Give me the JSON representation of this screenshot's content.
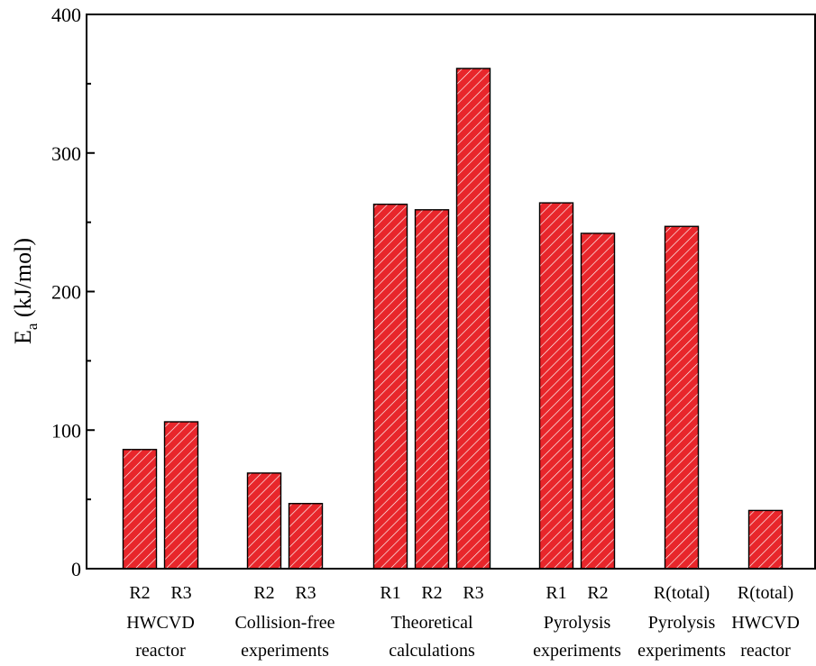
{
  "chart_data": {
    "type": "bar",
    "ylabel": {
      "main": "E",
      "sub": "a",
      "unit": " (kJ/mol)"
    },
    "ylim": [
      0,
      400
    ],
    "yticks": [
      "0",
      "100",
      "200",
      "300",
      "400"
    ],
    "ytick_values": [
      0,
      100,
      200,
      300,
      400
    ],
    "grid": false,
    "bar_color": "#e8262b",
    "hatch_color": "#ffffff",
    "groups": [
      {
        "line1": "HWCVD",
        "line2": "reactor",
        "bars": [
          {
            "label": "R2",
            "value": 86
          },
          {
            "label": "R3",
            "value": 106
          }
        ]
      },
      {
        "line1": "Collision-free",
        "line2": "experiments",
        "bars": [
          {
            "label": "R2",
            "value": 69
          },
          {
            "label": "R3",
            "value": 47
          }
        ]
      },
      {
        "line1": "Theoretical",
        "line2": "calculations",
        "bars": [
          {
            "label": "R1",
            "value": 263
          },
          {
            "label": "R2",
            "value": 259
          },
          {
            "label": "R3",
            "value": 361
          }
        ]
      },
      {
        "line1": "Pyrolysis",
        "line2": "experiments",
        "bars": [
          {
            "label": "R1",
            "value": 264
          },
          {
            "label": "R2",
            "value": 242
          }
        ]
      },
      {
        "line1": "Pyrolysis",
        "line2": "experiments",
        "bars": [
          {
            "label": "R(total)",
            "value": 247
          }
        ]
      },
      {
        "line1": "HWCVD",
        "line2": "reactor",
        "bars": [
          {
            "label": "R(total)",
            "value": 42
          }
        ]
      }
    ]
  }
}
